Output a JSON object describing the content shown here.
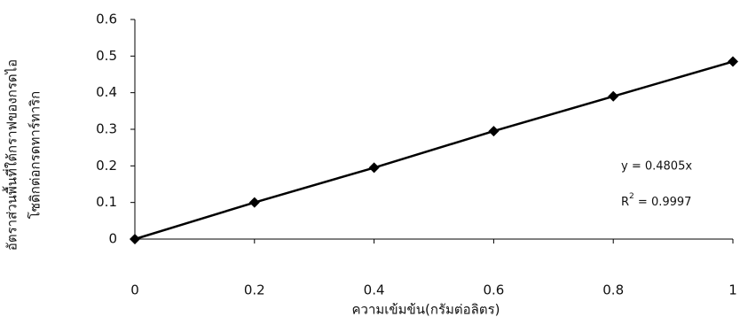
{
  "chart_data": {
    "type": "scatter_line",
    "x": [
      0,
      0.2,
      0.4,
      0.6,
      0.8,
      1
    ],
    "values": [
      0,
      0.1,
      0.195,
      0.295,
      0.39,
      0.485
    ],
    "color": "#000000",
    "xlim": [
      0,
      1
    ],
    "xticks": [
      0,
      0.2,
      0.4,
      0.6,
      0.8,
      1
    ],
    "ylim": [
      0,
      0.6
    ],
    "yticks": [
      0,
      0.1,
      0.2,
      0.3,
      0.4,
      0.5,
      0.6
    ],
    "x_label": "ความเข้มข้น(กรัมต่อลิตร)",
    "y_label": [
      "อัตราส่วนพื้นที่ใต้กราฟของกรดไอ",
      "โซดิกต่อกรดทาร์ทาริก"
    ],
    "equation": "y = 0.4805x",
    "r2": {
      "symbol": "R",
      "exponent": "2",
      "value": " = 0.9997"
    }
  }
}
